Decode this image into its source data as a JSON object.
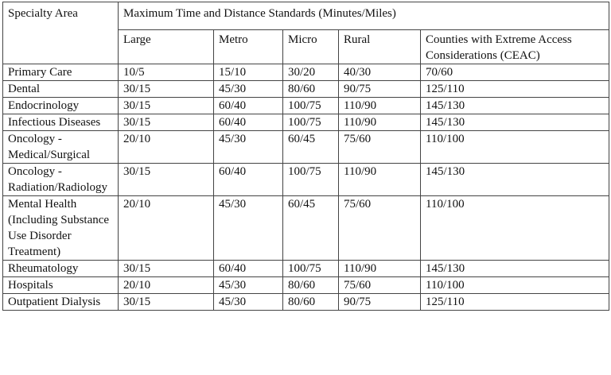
{
  "table": {
    "header": {
      "specialty_label": "Specialty Area",
      "group_label": "Maximum Time and Distance Standards (Minutes/Miles)",
      "columns": [
        "Large",
        "Metro",
        "Micro",
        "Rural",
        "Counties with Extreme Access Considerations (CEAC)"
      ]
    },
    "rows": [
      [
        "Primary Care",
        "10/5",
        "15/10",
        "30/20",
        "40/30",
        "70/60"
      ],
      [
        "Dental",
        "30/15",
        "45/30",
        "80/60",
        "90/75",
        "125/110"
      ],
      [
        "Endocrinology",
        "30/15",
        "60/40",
        "100/75",
        "110/90",
        "145/130"
      ],
      [
        "Infectious Diseases",
        "30/15",
        "60/40",
        "100/75",
        "110/90",
        "145/130"
      ],
      [
        "Oncology - Medical/Surgical",
        "20/10",
        "45/30",
        "60/45",
        "75/60",
        "110/100"
      ],
      [
        "Oncology - Radiation/Radiology",
        "30/15",
        "60/40",
        "100/75",
        "110/90",
        "145/130"
      ],
      [
        "Mental Health (Including Substance Use Disorder Treatment)",
        "20/10",
        "45/30",
        "60/45",
        "75/60",
        "110/100"
      ],
      [
        "Rheumatology",
        "30/15",
        "60/40",
        "100/75",
        "110/90",
        "145/130"
      ],
      [
        "Hospitals",
        "20/10",
        "45/30",
        "80/60",
        "75/60",
        "110/100"
      ],
      [
        "Outpatient Dialysis",
        "30/15",
        "45/30",
        "80/60",
        "90/75",
        "125/110"
      ]
    ]
  }
}
